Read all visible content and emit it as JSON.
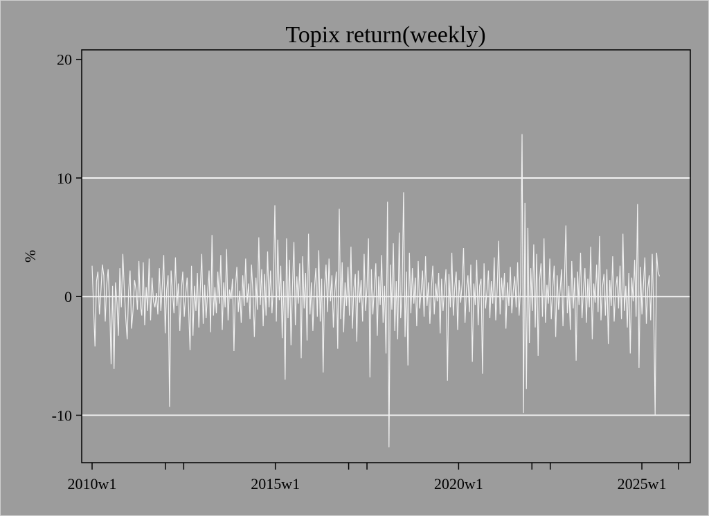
{
  "chart_data": {
    "type": "line",
    "title": "Topix return(weekly)",
    "xlabel": "",
    "ylabel": "%",
    "x_range": [
      "2010w1",
      "2026w12"
    ],
    "ylim": [
      -14,
      20.8
    ],
    "y_ticks": [
      {
        "value": 20,
        "label": "20"
      },
      {
        "value": 10,
        "label": "10"
      },
      {
        "value": 0,
        "label": "0"
      },
      {
        "value": -10,
        "label": "-10"
      }
    ],
    "x_ticks": [
      {
        "value": "2010w1",
        "label": "2010w1"
      },
      {
        "value": "2015w1",
        "label": "2015w1"
      },
      {
        "value": "2020w1",
        "label": "2020w1"
      },
      {
        "value": "2025w1",
        "label": "2025w1"
      }
    ],
    "x_minor_ticks": [
      "2012w1",
      "2017w1",
      "2022w1",
      "2026w1"
    ],
    "gridlines_y": [
      10,
      0,
      -10
    ],
    "colors": {
      "background": "#9c9c9c",
      "line": "#f2f2f2",
      "grid": "#f2f2f2",
      "axis": "#000000"
    },
    "series": [
      {
        "values_note_x_start": "2010w1",
        "values": [
          2.6,
          -0.8,
          -4.2,
          1.3,
          2.1,
          -1.5,
          0.4,
          2.7,
          1.8,
          -2.1,
          1.0,
          2.3,
          -0.6,
          -5.7,
          0.9,
          -6.1,
          1.2,
          -0.5,
          -3.3,
          2.4,
          -0.9,
          3.6,
          0.7,
          -1.8,
          -3.6,
          0.5,
          2.2,
          -2.7,
          -1.2,
          1.4,
          0.6,
          -1.1,
          3.0,
          -0.7,
          -1.6,
          2.9,
          -2.4,
          0.8,
          -1.2,
          3.2,
          -2.0,
          1.6,
          -0.4,
          -0.9,
          0.3,
          -1.5,
          2.4,
          -1.2,
          0.9,
          3.5,
          -3.1,
          0.6,
          1.8,
          -9.3,
          2.2,
          0.4,
          -1.4,
          3.3,
          -0.8,
          1.1,
          -2.9,
          0.5,
          2.1,
          -1.7,
          0.2,
          1.6,
          -1.0,
          -4.5,
          2.6,
          -3.3,
          0.9,
          -1.2,
          2.0,
          -2.6,
          0.7,
          3.6,
          -2.3,
          1.0,
          -1.8,
          0.4,
          2.2,
          -3.0,
          5.2,
          -1.6,
          0.8,
          -1.4,
          2.1,
          -0.6,
          3.5,
          -2.8,
          1.2,
          -0.9,
          4.0,
          -2.0,
          0.6,
          -0.2,
          1.5,
          -4.6,
          0.7,
          2.5,
          -1.3,
          0.5,
          -2.2,
          1.8,
          -0.8,
          3.2,
          -0.5,
          1.1,
          -1.9,
          2.7,
          0.4,
          -3.4,
          1.6,
          -1.1,
          5.0,
          -0.7,
          2.3,
          -2.5,
          1.9,
          -1.6,
          3.8,
          -0.9,
          2.2,
          -1.4,
          1.0,
          7.7,
          -2.1,
          4.8,
          -0.3,
          2.6,
          -3.5,
          1.3,
          -7.0,
          4.9,
          -1.8,
          3.1,
          -4.1,
          0.8,
          4.6,
          -2.4,
          1.7,
          -0.6,
          2.8,
          -5.2,
          3.4,
          -1.0,
          2.0,
          -3.7,
          5.3,
          -1.5,
          1.2,
          -2.9,
          0.6,
          2.4,
          -1.7,
          3.9,
          -2.1,
          1.5,
          -6.4,
          0.9,
          2.7,
          -1.3,
          3.2,
          -0.4,
          1.8,
          -2.6,
          0.5,
          2.1,
          -4.4,
          7.4,
          -1.9,
          2.9,
          -3.0,
          1.2,
          -0.8,
          2.5,
          -1.6,
          4.2,
          -2.7,
          0.7,
          1.9,
          -3.8,
          2.2,
          -0.5,
          1.4,
          -2.1,
          3.6,
          -1.2,
          0.8,
          4.9,
          -6.8,
          2.3,
          -1.5,
          0.6,
          2.8,
          -3.3,
          1.7,
          -0.7,
          3.5,
          -2.2,
          0.9,
          -4.8,
          8.0,
          -12.7,
          2.7,
          -1.1,
          4.5,
          -2.9,
          1.3,
          -3.6,
          5.4,
          -1.8,
          0.5,
          8.8,
          -3.4,
          2.1,
          -5.8,
          3.7,
          -1.4,
          2.4,
          -0.6,
          1.6,
          -2.5,
          3.0,
          -1.0,
          0.4,
          2.2,
          -1.7,
          3.4,
          -0.8,
          1.2,
          -2.3,
          0.7,
          2.6,
          -1.5,
          1.1,
          -0.4,
          2.0,
          -3.1,
          1.5,
          -1.2,
          0.6,
          2.3,
          -7.1,
          1.9,
          -0.9,
          3.7,
          -1.6,
          0.8,
          2.1,
          -2.8,
          1.4,
          -0.5,
          1.0,
          4.1,
          -2.2,
          0.6,
          1.8,
          -1.3,
          2.7,
          -5.5,
          1.1,
          -0.7,
          3.1,
          -2.4,
          0.9,
          1.5,
          -6.5,
          2.8,
          -1.0,
          0.4,
          2.2,
          -1.8,
          1.3,
          -0.6,
          3.3,
          -2.0,
          0.7,
          4.7,
          -1.5,
          1.6,
          -0.3,
          2.0,
          -2.7,
          1.2,
          -0.8,
          2.5,
          -1.4,
          0.5,
          1.7,
          -0.9,
          2.9,
          -1.6,
          0.8,
          13.7,
          -9.8,
          7.9,
          -7.8,
          5.8,
          -3.9,
          2.4,
          -1.2,
          4.4,
          -2.6,
          3.6,
          -5.0,
          1.4,
          2.8,
          -1.7,
          4.9,
          -2.2,
          1.0,
          -0.6,
          3.2,
          -1.9,
          0.7,
          2.6,
          -3.4,
          1.8,
          -1.1,
          0.5,
          2.3,
          -2.5,
          1.3,
          6.0,
          -1.4,
          0.9,
          -2.8,
          3.0,
          -1.0,
          1.6,
          -5.4,
          2.1,
          -0.7,
          3.7,
          -1.8,
          0.6,
          2.4,
          -2.2,
          1.5,
          -0.9,
          4.2,
          -3.6,
          1.1,
          -0.5,
          2.7,
          -1.3,
          5.1,
          -2.0,
          0.8,
          1.9,
          -1.6,
          2.3,
          -4.0,
          1.4,
          -0.8,
          3.4,
          -2.1,
          0.6,
          1.7,
          -1.0,
          2.6,
          -1.9,
          5.3,
          -1.2,
          0.9,
          -2.6,
          2.0,
          -4.8,
          1.6,
          -0.4,
          3.1,
          -1.7,
          7.8,
          -6.0,
          2.5,
          -1.5,
          1.0,
          3.3,
          -2.3,
          0.7,
          1.8,
          -2.0,
          3.6,
          -1.1,
          -10.0,
          3.7,
          2.1,
          1.7
        ]
      }
    ]
  }
}
